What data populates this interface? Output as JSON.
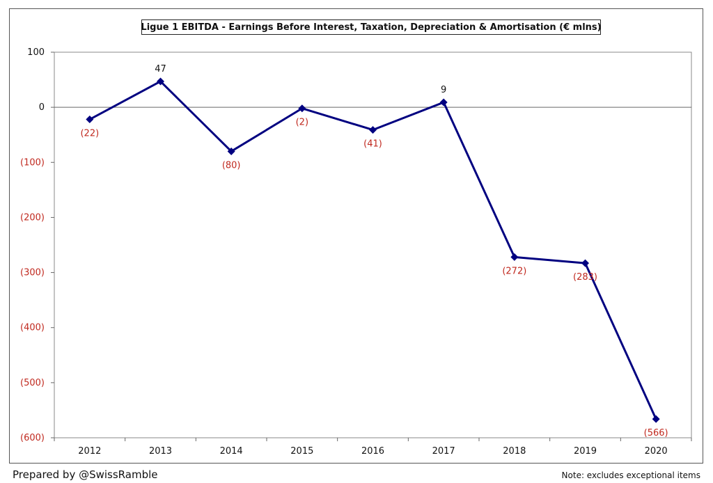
{
  "chart_data": {
    "type": "line",
    "title": "Ligue 1 EBITDA - Earnings Before Interest, Taxation, Depreciation & Amortisation (€ mlns)",
    "categories": [
      "2012",
      "2013",
      "2014",
      "2015",
      "2016",
      "2017",
      "2018",
      "2019",
      "2020"
    ],
    "values": [
      -22,
      47,
      -80,
      -2,
      -41,
      9,
      -272,
      -283,
      -566
    ],
    "data_labels": [
      "(22)",
      "47",
      "(80)",
      "(2)",
      "(41)",
      "9",
      "(272)",
      "(283)",
      "(566)"
    ],
    "y_ticks": [
      100,
      0,
      -100,
      -200,
      -300,
      -400,
      -500,
      -600
    ],
    "y_tick_labels": [
      "100",
      "0",
      "(100)",
      "(200)",
      "(300)",
      "(400)",
      "(500)",
      "(600)"
    ],
    "ylim": [
      -600,
      100
    ],
    "grid": false,
    "colors": {
      "line": "#000080",
      "negative_label": "#c0281e",
      "positive_label": "#111111"
    }
  },
  "footer": {
    "prepared_by": "Prepared by @SwissRamble",
    "note": "Note: excludes exceptional items"
  }
}
